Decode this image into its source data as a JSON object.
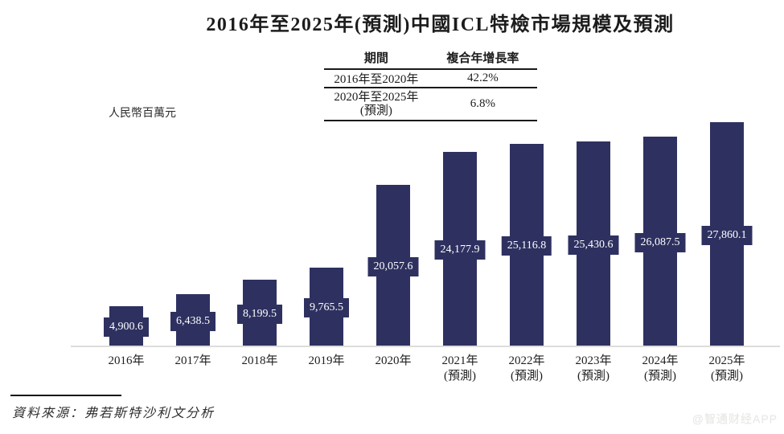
{
  "title": "2016年至2025年(預測)中國ICL特檢市場規模及預測",
  "y_axis_label": "人民幣百萬元",
  "cagr_table": {
    "col_period": "期間",
    "col_cagr": "複合年增長率",
    "rows": [
      {
        "period": "2016年至2020年",
        "period_sub": "",
        "cagr": "42.2%"
      },
      {
        "period": "2020年至2025年",
        "period_sub": "(預測)",
        "cagr": "6.8%"
      }
    ]
  },
  "source": "資料來源：弗若斯特沙利文分析",
  "watermark": "@智通财经APP",
  "colors": {
    "bar": "#2e3160",
    "axis_line": "#dcdcdc",
    "value_text": "#ffffff"
  },
  "chart_data": {
    "type": "bar",
    "title": "2016年至2025年(預測)中國ICL特檢市場規模及預測",
    "ylabel": "人民幣百萬元",
    "categories": [
      "2016年",
      "2017年",
      "2018年",
      "2019年",
      "2020年",
      "2021年",
      "2022年",
      "2023年",
      "2024年",
      "2025年"
    ],
    "forecast_flags": [
      false,
      false,
      false,
      false,
      false,
      true,
      true,
      true,
      true,
      true
    ],
    "forecast_suffix": "(預測)",
    "values": [
      4900.6,
      6438.5,
      8199.5,
      9765.5,
      20057.6,
      24177.9,
      25116.8,
      25430.6,
      26087.5,
      27860.1
    ],
    "value_labels": [
      "4,900.6",
      "6,438.5",
      "8,199.5",
      "9,765.5",
      "20,057.6",
      "24,177.9",
      "25,116.8",
      "25,430.6",
      "26,087.5",
      "27,860.1"
    ],
    "cagr_summary": [
      {
        "period": "2016年至2020年",
        "cagr": "42.2%"
      },
      {
        "period": "2020年至2025年(預測)",
        "cagr": "6.8%"
      }
    ],
    "ylim": [
      0,
      28500
    ],
    "grid": false,
    "legend": "none"
  }
}
